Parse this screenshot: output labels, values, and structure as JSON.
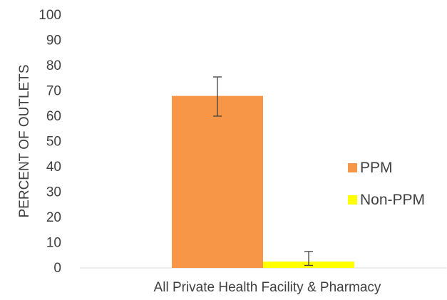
{
  "chart_data": {
    "type": "bar",
    "categories": [
      "All Private Health Facility & Pharmacy"
    ],
    "series": [
      {
        "name": "PPM",
        "values": [
          68
        ],
        "error_low": [
          60
        ],
        "error_high": [
          75.5
        ],
        "color": "#F79646"
      },
      {
        "name": "Non-PPM",
        "values": [
          2.5
        ],
        "error_low": [
          1
        ],
        "error_high": [
          6.5
        ],
        "color": "#FFFF00"
      }
    ],
    "ylabel": "PERCENT OF OUTLETS",
    "xlabel": "",
    "ylim": [
      0,
      100
    ],
    "yticks": [
      0,
      10,
      20,
      30,
      40,
      50,
      60,
      70,
      80,
      90,
      100
    ],
    "grid": false,
    "legend_position": "right"
  }
}
